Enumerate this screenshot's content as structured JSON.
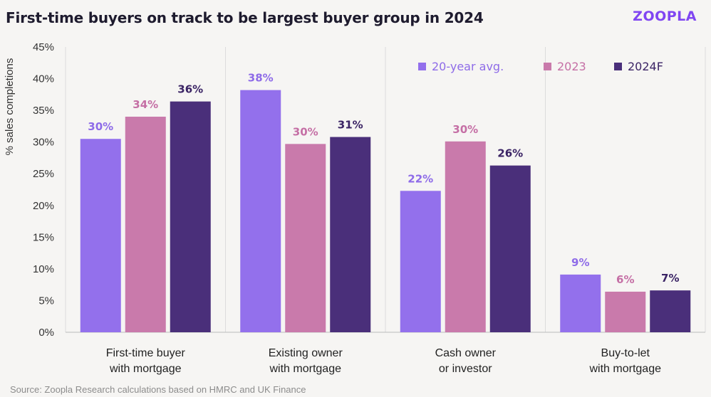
{
  "header": {
    "title": "First-time buyers on track to be largest buyer group in 2024",
    "logo": "ZOOPLA"
  },
  "footer": {
    "source": "Source: Zoopla Research calculations based on HMRC and UK Finance"
  },
  "colors": {
    "series_1": "#9370ec",
    "series_2": "#c97aab",
    "series_3": "#4a2f7a",
    "label_1": "#8e6be8",
    "label_2": "#c56fa5",
    "label_3": "#3b2465",
    "gridline": "#dcdcdc"
  },
  "chart_data": {
    "type": "bar",
    "title": "First-time buyers on track to be largest buyer group in 2024",
    "xlabel": "",
    "ylabel": "% sales completions",
    "ylim": [
      0,
      45
    ],
    "yticks": [
      "0%",
      "5%",
      "10%",
      "15%",
      "20%",
      "25%",
      "30%",
      "35%",
      "40%",
      "45%"
    ],
    "categories": [
      [
        "First-time buyer",
        "with mortgage"
      ],
      [
        "Existing owner",
        "with mortgage"
      ],
      [
        "Cash owner",
        "or investor"
      ],
      [
        "Buy-to-let",
        "with mortgage"
      ]
    ],
    "series": [
      {
        "name": "20-year avg.",
        "values": [
          30.5,
          38.2,
          22.3,
          9.1
        ],
        "labels": [
          "30%",
          "38%",
          "22%",
          "9%"
        ]
      },
      {
        "name": "2023",
        "values": [
          34.0,
          29.7,
          30.1,
          6.4
        ],
        "labels": [
          "34%",
          "30%",
          "30%",
          "6%"
        ]
      },
      {
        "name": "2024F",
        "values": [
          36.4,
          30.8,
          26.3,
          6.6
        ],
        "labels": [
          "36%",
          "31%",
          "26%",
          "7%"
        ]
      }
    ],
    "legend_position": "top-right",
    "grid": "vertical category separators"
  }
}
